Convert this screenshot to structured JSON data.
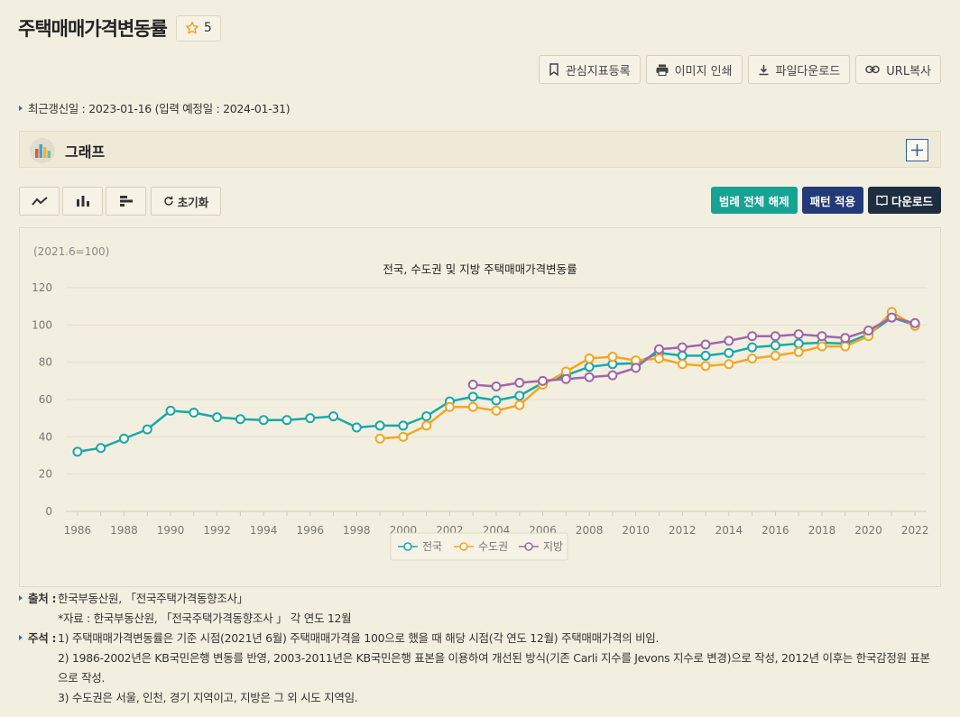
{
  "header": {
    "title": "주택매매가격변동률",
    "favorite_count": "5"
  },
  "actions": {
    "bookmark": "관심지표등록",
    "print": "이미지 인쇄",
    "download_file": "파일다운로드",
    "copy_url": "URL복사"
  },
  "update_info": "최근갱신일 : 2023-01-16 (입력 예정일 : 2024-01-31)",
  "graph_section": {
    "label": "그래프"
  },
  "toolbar": {
    "reset": "초기화",
    "legend_off": "범례 전체 해제",
    "pattern": "패턴 적용",
    "download": "다운로드"
  },
  "colors": {
    "teal": "#1aa8a8",
    "orange": "#f5a623",
    "purple": "#a066aa",
    "accent_teal": "#17a393",
    "accent_navy": "#233a78"
  },
  "chart_data": {
    "type": "line",
    "title": "전국, 수도권 및 지방 주택매매가격변동률",
    "unit_note": "(2021.6=100)",
    "ylim": [
      0,
      120
    ],
    "yticks": [
      0,
      20,
      40,
      60,
      80,
      100,
      120
    ],
    "xticks": [
      1986,
      1988,
      1990,
      1992,
      1994,
      1996,
      1998,
      2000,
      2002,
      2004,
      2006,
      2008,
      2010,
      2012,
      2014,
      2016,
      2018,
      2020,
      2022
    ],
    "x": [
      1986,
      1987,
      1988,
      1989,
      1990,
      1991,
      1992,
      1993,
      1994,
      1995,
      1996,
      1997,
      1998,
      1999,
      2000,
      2001,
      2002,
      2003,
      2004,
      2005,
      2006,
      2007,
      2008,
      2009,
      2010,
      2011,
      2012,
      2013,
      2014,
      2015,
      2016,
      2017,
      2018,
      2019,
      2020,
      2021,
      2022
    ],
    "series": [
      {
        "name": "전국",
        "color": "#1aa8a8",
        "values": [
          32,
          34,
          39,
          44,
          54,
          53,
          50.5,
          49.5,
          49,
          49,
          50,
          51,
          45,
          46,
          46,
          51,
          59,
          61.5,
          59.5,
          62,
          69,
          73,
          77.5,
          79,
          79.5,
          85,
          83.5,
          83.5,
          85,
          88,
          89,
          90,
          90.5,
          90,
          95,
          104,
          100
        ]
      },
      {
        "name": "수도권",
        "color": "#f5a623",
        "values": [
          null,
          null,
          null,
          null,
          null,
          null,
          null,
          null,
          null,
          null,
          null,
          null,
          null,
          39,
          40,
          46,
          56,
          56,
          54,
          57,
          68,
          75,
          82,
          83,
          81,
          82,
          79,
          78,
          79,
          82,
          83.5,
          85.5,
          88.5,
          88.5,
          94,
          107,
          99.5
        ]
      },
      {
        "name": "지방",
        "color": "#a066aa",
        "values": [
          null,
          null,
          null,
          null,
          null,
          null,
          null,
          null,
          null,
          null,
          null,
          null,
          null,
          null,
          null,
          null,
          null,
          68,
          67,
          69,
          70,
          71,
          72,
          73,
          77,
          87,
          88,
          89.5,
          91.5,
          94,
          94,
          95,
          94,
          93,
          97,
          104,
          101
        ]
      }
    ]
  },
  "notes": {
    "source_key": "출처 :",
    "source": "한국부동산원, 「전국주택가격동향조사」",
    "source_sub": "*자료 : 한국부동산원, 「전국주택가격동향조사 」 각 연도 12월",
    "remarks_key": "주석 :",
    "remark1": "1) 주택매매가격변동률은 기준 시점(2021년 6월) 주택매매가격을 100으로 했을 때 해당 시점(각 연도 12월) 주택매매가격의 비임.",
    "remark2": "2) 1986-2002년은 KB국민은행 변동를 반영, 2003-2011년은 KB국민은행 표본을 이용하여 개선된 방식(기존 Carli 지수를 Jevons 지수로 변경)으로 작성, 2012년 이후는 한국감정원 표본으로 작성.",
    "remark3": "3) 수도권은 서울, 인천, 경기 지역이고, 지방은 그 외 시도 지역임."
  }
}
